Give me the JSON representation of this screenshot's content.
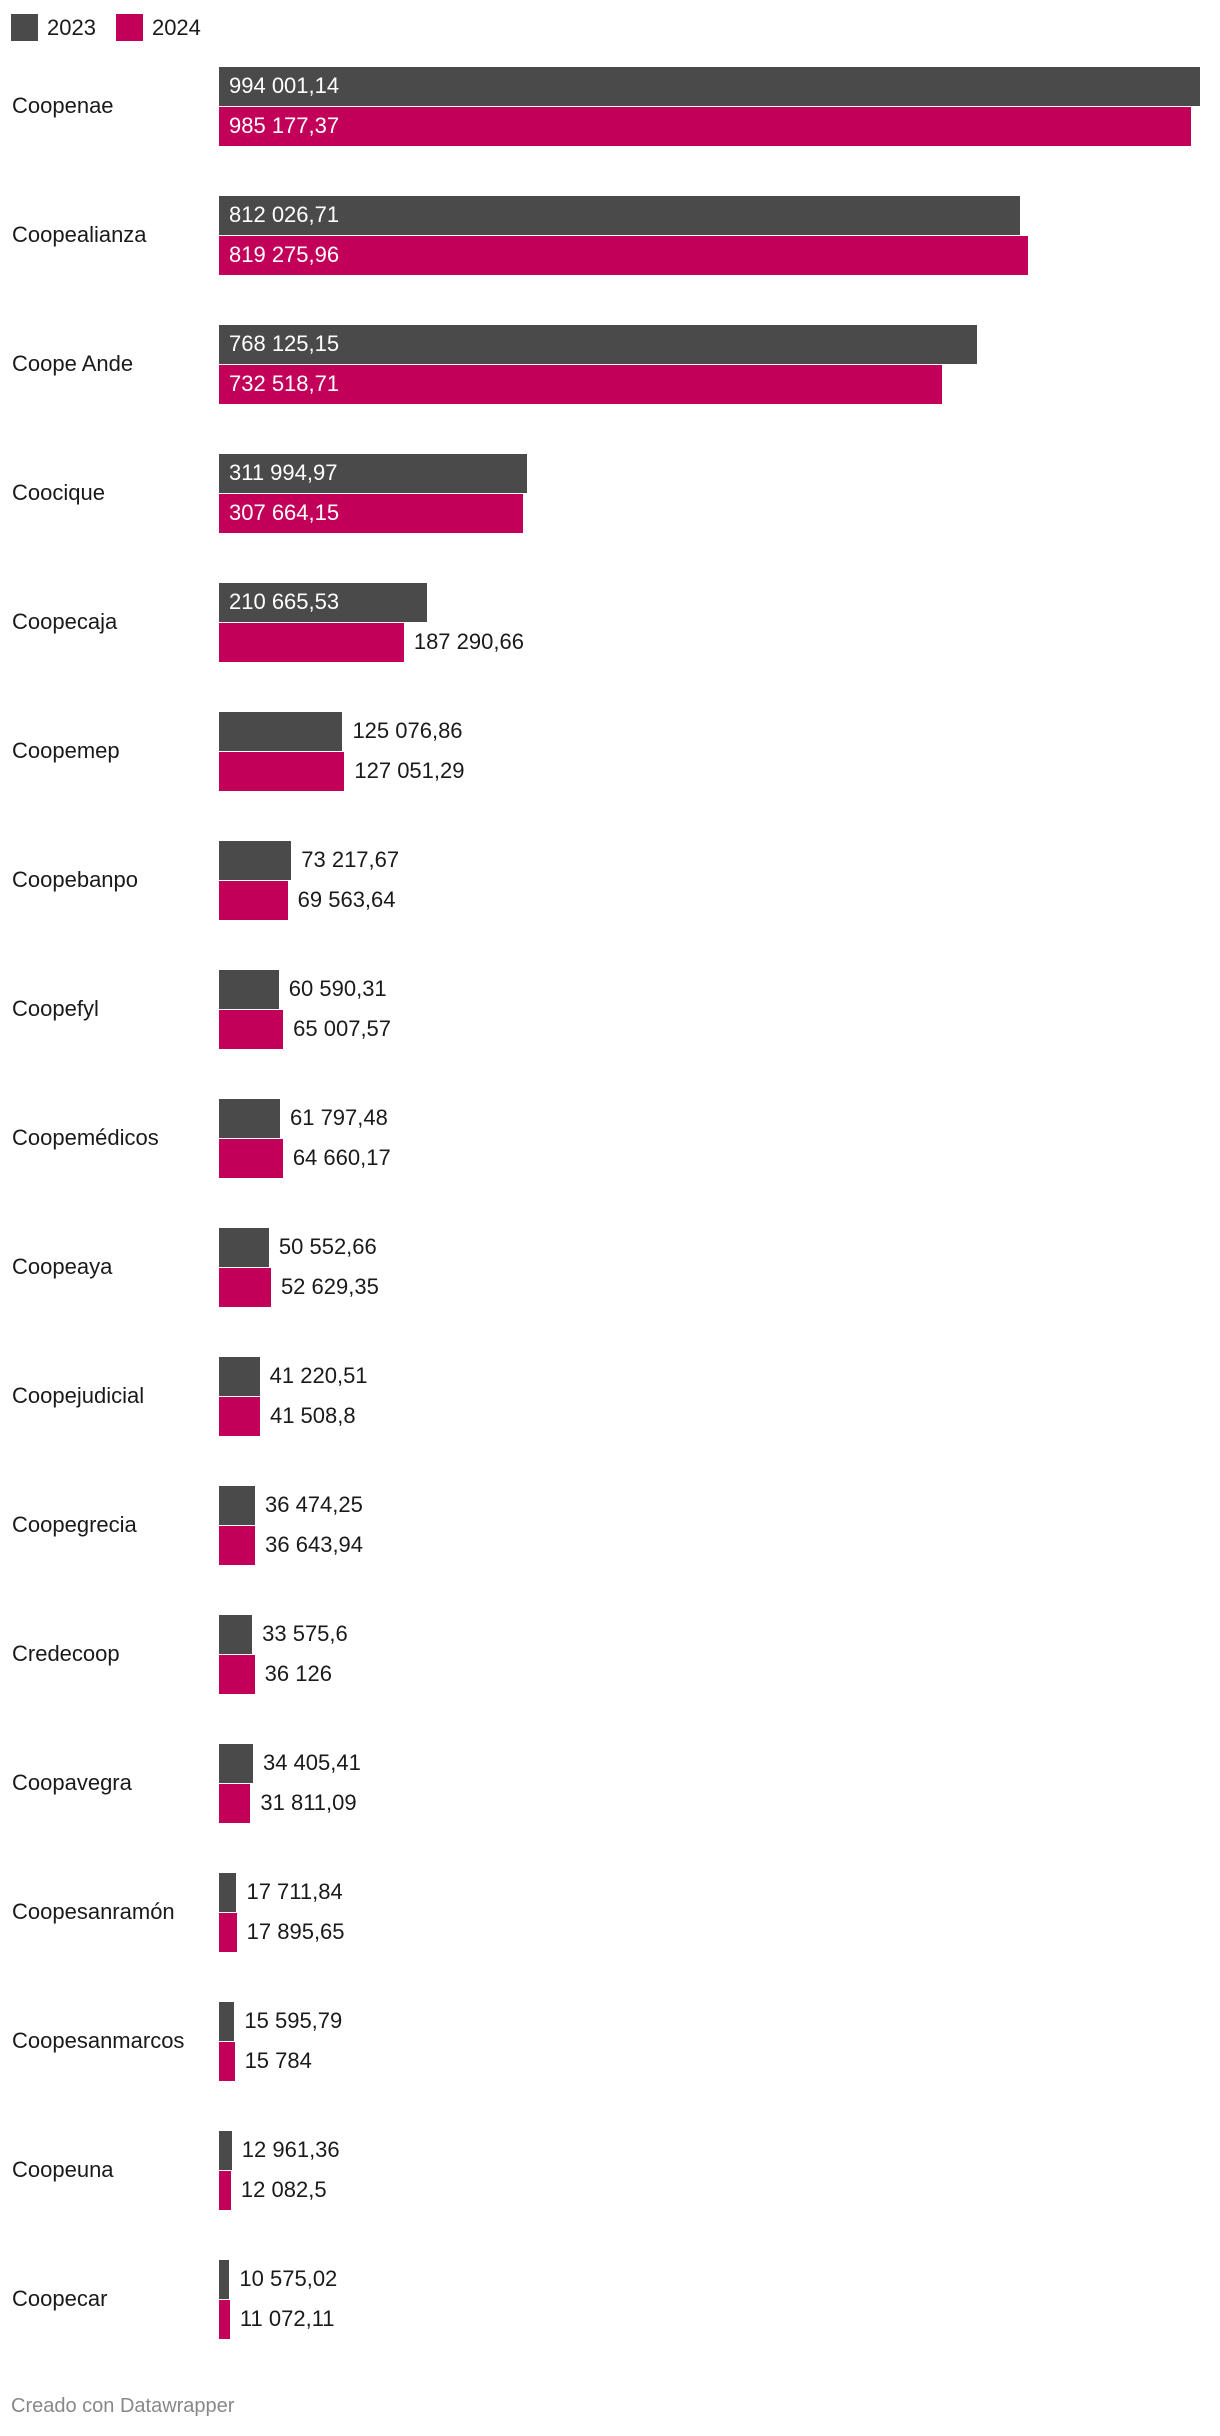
{
  "legend": [
    {
      "label": "2023",
      "color": "#4a4a4a"
    },
    {
      "label": "2024",
      "color": "#c2005a"
    }
  ],
  "footer": "Creado con Datawrapper",
  "chart_data": {
    "type": "bar",
    "orientation": "horizontal",
    "title": "",
    "xlabel": "",
    "ylabel": "",
    "xlim": [
      0,
      994001.14
    ],
    "grid": false,
    "legend_position": "top-left",
    "categories": [
      "Coopenae",
      "Coopealianza",
      "Coope Ande",
      "Coocique",
      "Coopecaja",
      "Coopemep",
      "Coopebanpo",
      "Coopefyl",
      "Coopemédicos",
      "Coopeaya",
      "Coopejudicial",
      "Coopegrecia",
      "Credecoop",
      "Coopavegra",
      "Coopesanramón",
      "Coopesanmarcos",
      "Coopeuna",
      "Coopecar"
    ],
    "series": [
      {
        "name": "2023",
        "color": "#4a4a4a",
        "values": [
          994001.14,
          812026.71,
          768125.15,
          311994.97,
          210665.53,
          125076.86,
          73217.67,
          60590.31,
          61797.48,
          50552.66,
          41220.51,
          36474.25,
          33575.6,
          34405.41,
          17711.84,
          15595.79,
          12961.36,
          10575.02
        ],
        "labels": [
          "994 001,14",
          "812 026,71",
          "768 125,15",
          "311 994,97",
          "210 665,53",
          "125 076,86",
          "73 217,67",
          "60 590,31",
          "61 797,48",
          "50 552,66",
          "41 220,51",
          "36 474,25",
          "33 575,6",
          "34 405,41",
          "17 711,84",
          "15 595,79",
          "12 961,36",
          "10 575,02"
        ]
      },
      {
        "name": "2024",
        "color": "#c2005a",
        "values": [
          985177.37,
          819275.96,
          732518.71,
          307664.15,
          187290.66,
          127051.29,
          69563.64,
          65007.57,
          64660.17,
          52629.35,
          41508.8,
          36643.94,
          36126,
          31811.09,
          17895.65,
          15784,
          12082.5,
          11072.11
        ],
        "labels": [
          "985 177,37",
          "819 275,96",
          "732 518,71",
          "307 664,15",
          "187 290,66",
          "127 051,29",
          "69 563,64",
          "65 007,57",
          "64 660,17",
          "52 629,35",
          "41 508,8",
          "36 643,94",
          "36 126",
          "31 811,09",
          "17 895,65",
          "15 784",
          "12 082,5",
          "11 072,11"
        ]
      }
    ]
  }
}
